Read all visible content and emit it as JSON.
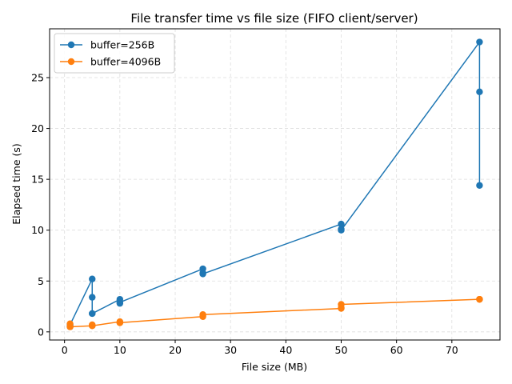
{
  "chart_data": {
    "type": "line",
    "title": "File transfer time vs file size (FIFO client/server)",
    "xlabel": "File size (MB)",
    "ylabel": "Elapsed time (s)",
    "xlim": [
      -2.7,
      78.7
    ],
    "ylim": [
      -0.8,
      29.8
    ],
    "xticks": [
      0,
      10,
      20,
      30,
      40,
      50,
      60,
      70
    ],
    "yticks": [
      0,
      5,
      10,
      15,
      20,
      25
    ],
    "grid": true,
    "legend_position": "top-left",
    "series": [
      {
        "name": "buffer=256B",
        "color": "#1f77b4",
        "x": [
          1,
          1,
          1,
          5,
          5,
          5,
          5,
          10,
          10,
          10,
          25,
          25,
          25,
          50,
          50,
          50,
          75,
          75,
          75
        ],
        "y": [
          0.5,
          0.6,
          0.7,
          5.2,
          3.4,
          1.8,
          1.8,
          3.2,
          2.8,
          2.9,
          6.2,
          5.8,
          5.7,
          10.6,
          10.1,
          10.0,
          28.5,
          23.6,
          14.4
        ]
      },
      {
        "name": "buffer=4096B",
        "color": "#ff7f0e",
        "x": [
          1,
          1,
          1,
          5,
          5,
          5,
          10,
          10,
          10,
          25,
          25,
          25,
          50,
          50,
          50,
          75,
          75,
          75
        ],
        "y": [
          0.8,
          0.5,
          0.5,
          0.6,
          0.7,
          0.6,
          1.0,
          0.9,
          0.9,
          1.5,
          1.6,
          1.7,
          2.3,
          2.4,
          2.7,
          3.2,
          3.2,
          3.2
        ]
      }
    ]
  }
}
